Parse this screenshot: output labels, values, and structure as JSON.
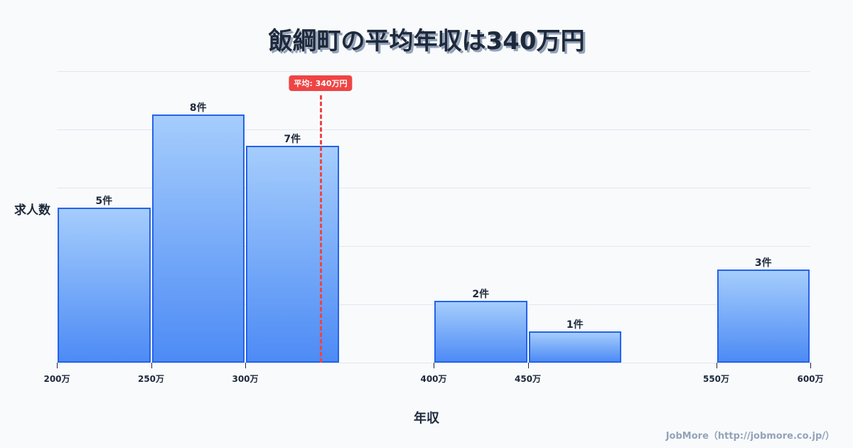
{
  "title": "飯綱町の平均年収は340万円",
  "axis": {
    "ylabel": "求人数",
    "xlabel": "年収"
  },
  "average": {
    "label": "平均: 340万円",
    "value": 340
  },
  "footer": "JobMore（http://jobmore.co.jp/）",
  "colors": {
    "bar_top": "#a5cdfc",
    "bar_bottom": "#4d8bf5",
    "bar_border": "#2563eb",
    "average": "#ef4444",
    "text": "#1e293b"
  },
  "chart_data": {
    "type": "bar",
    "title": "飯綱町の平均年収は340万円",
    "xlabel": "年収",
    "ylabel": "求人数",
    "categories": [
      "200万-250万",
      "250万-300万",
      "300万-350万",
      "400万-450万",
      "450万-500万",
      "550万-600万"
    ],
    "bins": [
      [
        200,
        250
      ],
      [
        250,
        300
      ],
      [
        300,
        350
      ],
      [
        400,
        450
      ],
      [
        450,
        500
      ],
      [
        550,
        600
      ]
    ],
    "values": [
      5,
      8,
      7,
      2,
      1,
      3
    ],
    "value_labels": [
      "5件",
      "8件",
      "7件",
      "2件",
      "1件",
      "3件"
    ],
    "x_ticks": [
      "200万",
      "250万",
      "300万",
      "400万",
      "450万",
      "550万",
      "600万"
    ],
    "x_tick_values": [
      200,
      250,
      300,
      400,
      450,
      550,
      600
    ],
    "xlim": [
      200,
      600
    ],
    "ylim": [
      0,
      9.4
    ],
    "grid": true,
    "annotations": [
      {
        "type": "vline",
        "x": 340,
        "label": "平均: 340万円"
      }
    ]
  }
}
